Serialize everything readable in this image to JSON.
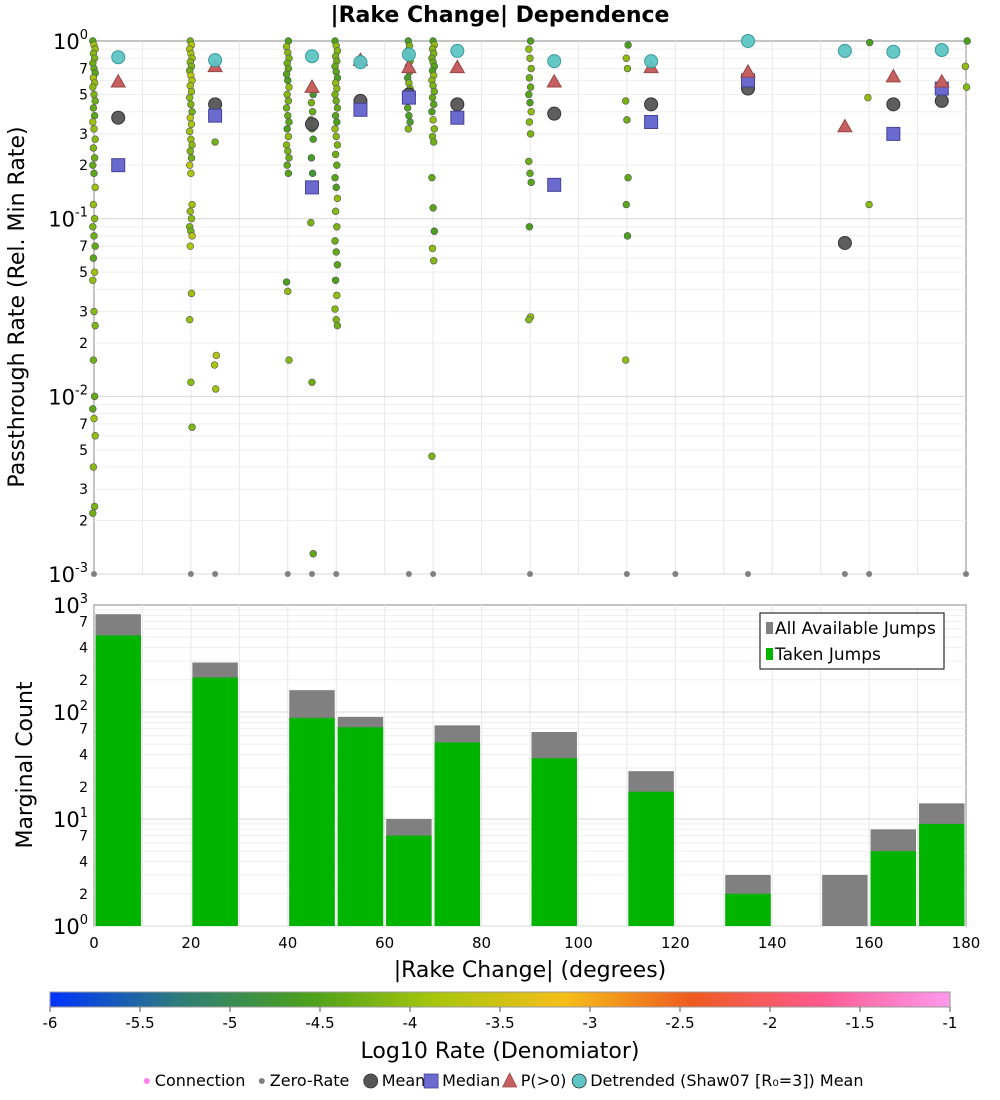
{
  "chart_data": [
    {
      "type": "scatter",
      "title": "|Rake Change| Dependence",
      "ylabel": "Passthrough Rate (Rel. Min Rate)",
      "xlim": [
        0,
        180
      ],
      "ylim": [
        0.001,
        1
      ],
      "yscale": "log",
      "grid": true,
      "y_major_ticks": [
        {
          "value": 1,
          "base": "10",
          "exp": "0"
        },
        {
          "value": 0.1,
          "base": "10",
          "exp": "-1"
        },
        {
          "value": 0.01,
          "base": "10",
          "exp": "-2"
        },
        {
          "value": 0.001,
          "base": "10",
          "exp": "-3"
        }
      ],
      "y_minor_ticks": [
        {
          "value": 0.7,
          "label": "7"
        },
        {
          "value": 0.5,
          "label": "5"
        },
        {
          "value": 0.3,
          "label": "3"
        },
        {
          "value": 0.2,
          "label": "2"
        },
        {
          "value": 0.07,
          "label": "7"
        },
        {
          "value": 0.05,
          "label": "5"
        },
        {
          "value": 0.03,
          "label": "3"
        },
        {
          "value": 0.02,
          "label": "2"
        },
        {
          "value": 0.007,
          "label": "7"
        },
        {
          "value": 0.005,
          "label": "5"
        },
        {
          "value": 0.003,
          "label": "3"
        },
        {
          "value": 0.002,
          "label": "2"
        }
      ],
      "connections_note": "individual connection rates colored by Log10 Rate (Denominator)",
      "connection_columns": [
        {
          "x": 0,
          "color_log10": -4.2,
          "y": [
            1.0,
            0.95,
            0.9,
            0.85,
            0.8,
            0.75,
            0.7,
            0.66,
            0.62,
            0.58,
            0.55,
            0.5,
            0.46,
            0.42,
            0.38,
            0.35,
            0.32,
            0.28,
            0.25,
            0.22,
            0.2,
            0.18,
            0.15,
            0.12,
            0.1,
            0.09,
            0.08,
            0.07,
            0.06,
            0.05,
            0.045,
            0.03,
            0.025,
            0.016,
            0.01,
            0.0085,
            0.0075,
            0.006,
            0.004,
            0.0024,
            0.0022,
            0.001
          ]
        },
        {
          "x": 20,
          "color_log10": -4.0,
          "y": [
            1.0,
            0.95,
            0.9,
            0.85,
            0.8,
            0.76,
            0.72,
            0.68,
            0.64,
            0.6,
            0.56,
            0.52,
            0.48,
            0.44,
            0.4,
            0.37,
            0.34,
            0.31,
            0.28,
            0.26,
            0.24,
            0.22,
            0.2,
            0.18,
            0.12,
            0.11,
            0.1,
            0.09,
            0.085,
            0.08,
            0.07,
            0.038,
            0.027,
            0.012,
            0.0067,
            0.001
          ]
        },
        {
          "x": 25,
          "color_log10": -4.0,
          "y": [
            0.27,
            0.017,
            0.015,
            0.011,
            0.001
          ]
        },
        {
          "x": 40,
          "color_log10": -4.3,
          "y": [
            1.0,
            0.93,
            0.86,
            0.8,
            0.75,
            0.7,
            0.65,
            0.6,
            0.55,
            0.5,
            0.46,
            0.42,
            0.38,
            0.35,
            0.32,
            0.29,
            0.26,
            0.24,
            0.22,
            0.2,
            0.18,
            0.044,
            0.039,
            0.016,
            0.001
          ]
        },
        {
          "x": 45,
          "color_log10": -4.5,
          "y": [
            0.5,
            0.45,
            0.4,
            0.36,
            0.32,
            0.28,
            0.22,
            0.18,
            0.095,
            0.012,
            0.0013,
            0.001
          ]
        },
        {
          "x": 50,
          "color_log10": -4.3,
          "y": [
            1.0,
            0.94,
            0.88,
            0.82,
            0.77,
            0.72,
            0.67,
            0.62,
            0.58,
            0.54,
            0.5,
            0.46,
            0.42,
            0.38,
            0.35,
            0.32,
            0.29,
            0.26,
            0.23,
            0.2,
            0.17,
            0.15,
            0.13,
            0.11,
            0.09,
            0.075,
            0.065,
            0.055,
            0.045,
            0.037,
            0.031,
            0.027,
            0.025,
            0.001
          ]
        },
        {
          "x": 65,
          "color_log10": -4.4,
          "y": [
            1.0,
            0.94,
            0.88,
            0.82,
            0.77,
            0.72,
            0.67,
            0.62,
            0.58,
            0.54,
            0.5,
            0.46,
            0.42,
            0.38,
            0.35,
            0.32,
            0.001
          ]
        },
        {
          "x": 70,
          "color_log10": -4.3,
          "y": [
            1.0,
            0.95,
            0.9,
            0.85,
            0.8,
            0.76,
            0.72,
            0.68,
            0.64,
            0.6,
            0.56,
            0.52,
            0.48,
            0.44,
            0.4,
            0.36,
            0.32,
            0.29,
            0.27,
            0.17,
            0.115,
            0.085,
            0.068,
            0.058,
            0.0046,
            0.001
          ]
        },
        {
          "x": 90,
          "color_log10": -4.3,
          "y": [
            1.0,
            0.9,
            0.8,
            0.7,
            0.62,
            0.55,
            0.5,
            0.45,
            0.4,
            0.35,
            0.3,
            0.21,
            0.18,
            0.16,
            0.09,
            0.028,
            0.027,
            0.001
          ]
        },
        {
          "x": 110,
          "color_log10": -4.3,
          "y": [
            0.95,
            0.8,
            0.7,
            0.46,
            0.36,
            0.17,
            0.12,
            0.08,
            0.016,
            0.001
          ]
        },
        {
          "x": 120,
          "color_log10": -4.3,
          "y": [
            0.001
          ]
        },
        {
          "x": 135,
          "color_log10": -4.3,
          "y": [
            0.001
          ]
        },
        {
          "x": 155,
          "color_log10": -4.3,
          "y": [
            0.001
          ]
        },
        {
          "x": 160,
          "color_log10": -4.3,
          "y": [
            0.98,
            0.48,
            0.12,
            0.001
          ]
        },
        {
          "x": 180,
          "color_log10": -4.3,
          "y": [
            1.0,
            0.72,
            0.55,
            0.001
          ]
        }
      ],
      "series": [
        {
          "name": "Mean",
          "x": [
            5,
            25,
            45,
            55,
            65,
            75,
            95,
            115,
            135,
            155,
            165,
            175
          ],
          "y": [
            0.37,
            0.44,
            0.34,
            0.46,
            0.5,
            0.44,
            0.39,
            0.44,
            0.54,
            0.073,
            0.44,
            0.46
          ]
        },
        {
          "name": "Median",
          "x": [
            5,
            25,
            45,
            55,
            65,
            75,
            95,
            115,
            135,
            165,
            175
          ],
          "y": [
            0.2,
            0.38,
            0.15,
            0.41,
            0.48,
            0.37,
            0.155,
            0.35,
            0.6,
            0.3,
            0.54
          ]
        },
        {
          "name": "P(>0)",
          "x": [
            5,
            25,
            45,
            55,
            65,
            75,
            95,
            115,
            135,
            155,
            165,
            175
          ],
          "y": [
            0.59,
            0.72,
            0.55,
            0.78,
            0.71,
            0.71,
            0.59,
            0.71,
            0.67,
            0.33,
            0.63,
            0.59
          ]
        },
        {
          "name": "Detrended (Shaw07 [R₀=3]) Mean",
          "x": [
            5,
            25,
            45,
            55,
            65,
            75,
            95,
            115,
            135,
            155,
            165,
            175
          ],
          "y": [
            0.81,
            0.78,
            0.82,
            0.76,
            0.84,
            0.88,
            0.77,
            0.77,
            1.0,
            0.88,
            0.87,
            0.89
          ]
        }
      ]
    },
    {
      "type": "bar",
      "xlabel": "|Rake Change| (degrees)",
      "ylabel": "Marginal Count",
      "xlim": [
        0,
        180
      ],
      "ylim": [
        1,
        1000
      ],
      "yscale": "log",
      "grid": true,
      "x_ticks": [
        "0",
        "20",
        "40",
        "60",
        "80",
        "100",
        "120",
        "140",
        "160",
        "180"
      ],
      "y_major_ticks": [
        {
          "value": 1000,
          "base": "10",
          "exp": "3"
        },
        {
          "value": 100,
          "base": "10",
          "exp": "2"
        },
        {
          "value": 10,
          "base": "10",
          "exp": "1"
        },
        {
          "value": 1,
          "base": "10",
          "exp": "0"
        }
      ],
      "y_minor_ticks": [
        {
          "value": 700,
          "label": "7"
        },
        {
          "value": 400,
          "label": "4"
        },
        {
          "value": 200,
          "label": "2"
        },
        {
          "value": 70,
          "label": "7"
        },
        {
          "value": 40,
          "label": "4"
        },
        {
          "value": 20,
          "label": "2"
        },
        {
          "value": 7,
          "label": "7"
        },
        {
          "value": 4,
          "label": "4"
        },
        {
          "value": 2,
          "label": "2"
        }
      ],
      "bin_centers": [
        5,
        25,
        45,
        55,
        65,
        75,
        95,
        115,
        135,
        155,
        165,
        175
      ],
      "series": [
        {
          "name": "All Available Jumps",
          "color": "#808080",
          "values": [
            820,
            290,
            160,
            90,
            10,
            75,
            65,
            28,
            3,
            3,
            8,
            14
          ]
        },
        {
          "name": "Taken Jumps",
          "color": "#00b400",
          "values": [
            520,
            210,
            88,
            72,
            7,
            52,
            37,
            18,
            2,
            1,
            5,
            9
          ]
        }
      ],
      "legend_position": "top-right"
    }
  ],
  "colorbar": {
    "label": "Log10 Rate (Denomiator)",
    "ticks": [
      "-6",
      "-5.5",
      "-5",
      "-4.5",
      "-4",
      "-3.5",
      "-3",
      "-2.5",
      "-2",
      "-1.5",
      "-1"
    ],
    "min": -6,
    "max": -1,
    "stops": [
      "#0033ff",
      "#2e7d7a",
      "#4aa01c",
      "#a8c60c",
      "#f5be1a",
      "#ee5a20",
      "#ff5a90",
      "#ff99ee"
    ]
  },
  "legend": {
    "items": [
      {
        "label": "Connection",
        "marker": "dot",
        "color": "#ff80f0"
      },
      {
        "label": "Zero-Rate",
        "marker": "dot",
        "color": "#808080"
      },
      {
        "label": "Mean",
        "marker": "circle",
        "color": "#555555"
      },
      {
        "label": "Median",
        "marker": "square",
        "color": "#6a6acf"
      },
      {
        "label": "P(>0)",
        "marker": "triangle",
        "color": "#c66060"
      },
      {
        "label": "Detrended (Shaw07 [R₀=3]) Mean",
        "marker": "circle",
        "color": "#5ec4c4"
      }
    ]
  }
}
